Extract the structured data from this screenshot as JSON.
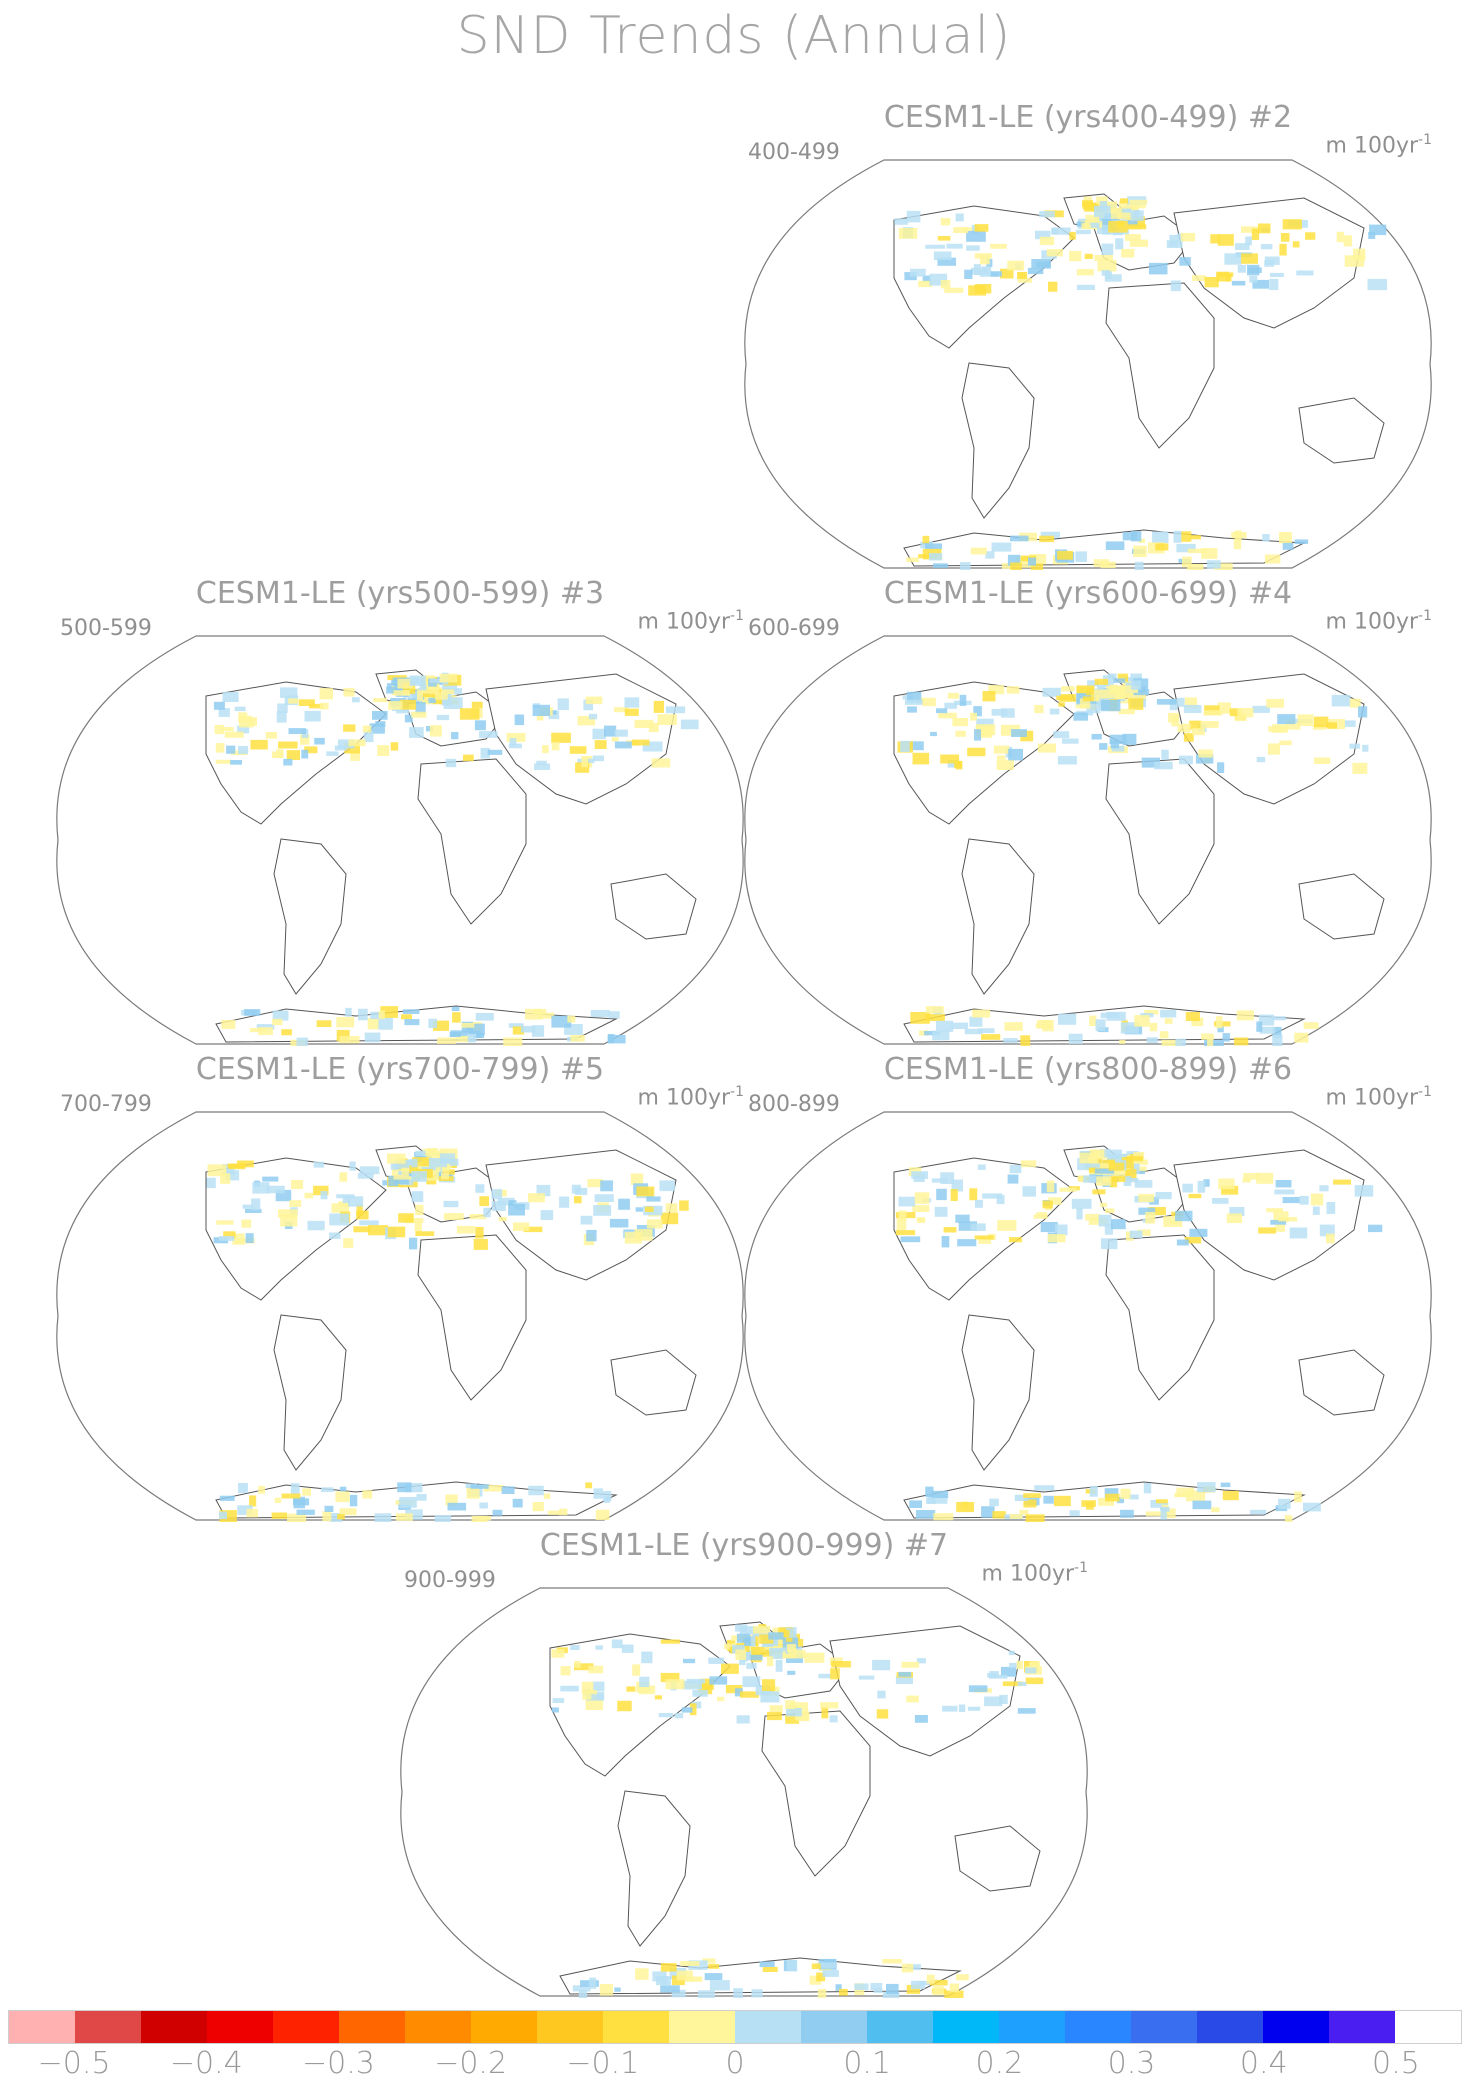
{
  "figure_title": "SND Trends (Annual)",
  "panels": [
    {
      "title": "CESM1-LE (yrs400-499) #2",
      "years": "400-499",
      "units": "m 100yr",
      "units_exp": "-1"
    },
    {
      "title": "CESM1-LE (yrs500-599) #3",
      "years": "500-599",
      "units": "m 100yr",
      "units_exp": "-1"
    },
    {
      "title": "CESM1-LE (yrs600-699) #4",
      "years": "600-699",
      "units": "m 100yr",
      "units_exp": "-1"
    },
    {
      "title": "CESM1-LE (yrs700-799) #5",
      "years": "700-799",
      "units": "m 100yr",
      "units_exp": "-1"
    },
    {
      "title": "CESM1-LE (yrs800-899) #6",
      "years": "800-899",
      "units": "m 100yr",
      "units_exp": "-1"
    },
    {
      "title": "CESM1-LE (yrs900-999) #7",
      "years": "900-999",
      "units": "m 100yr",
      "units_exp": "-1"
    }
  ],
  "colorbar": {
    "colors": [
      "#ffb0b0",
      "#e04848",
      "#d00000",
      "#ee0000",
      "#ff2200",
      "#ff6600",
      "#ff8c00",
      "#ffaa00",
      "#ffc820",
      "#ffe040",
      "#fff59a",
      "#b8e0f5",
      "#90cdf0",
      "#50bff0",
      "#00b8f8",
      "#1ea0ff",
      "#2a86ff",
      "#3a6ef0",
      "#2a4ae8",
      "#0000ee",
      "#4a1ef0",
      "#ffffff"
    ],
    "tick_labels": [
      "−0.5",
      "−0.4",
      "−0.3",
      "−0.2",
      "−0.1",
      "0",
      "0.1",
      "0.2",
      "0.3",
      "0.4",
      "0.5"
    ]
  }
}
